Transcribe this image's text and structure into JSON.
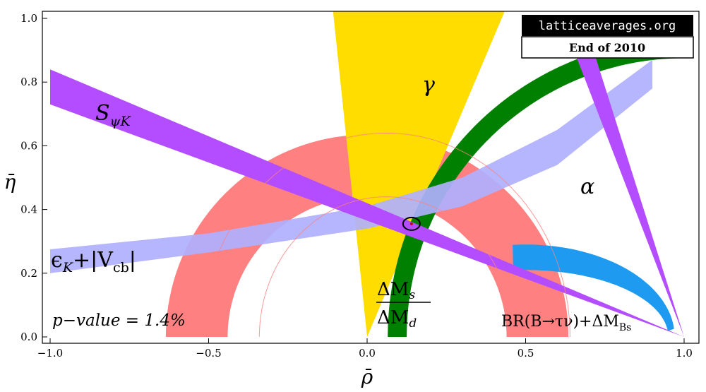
{
  "chart_data": {
    "type": "area",
    "xlabel": "ρ̄",
    "ylabel": "η̄",
    "xlim": [
      -1.0,
      1.0
    ],
    "ylim": [
      0.0,
      1.0
    ],
    "x_ticks": [
      "−1.0",
      "−0.5",
      "0.0",
      "0.5",
      "1.0"
    ],
    "y_ticks": [
      "0.0",
      "0.2",
      "0.4",
      "0.6",
      "0.8",
      "1.0"
    ],
    "x_tick_values": [
      -1.0,
      -0.5,
      0.0,
      0.5,
      1.0
    ],
    "y_tick_values": [
      0.0,
      0.2,
      0.4,
      0.6,
      0.8,
      1.0
    ],
    "badge": {
      "site": "latticeaverages.org",
      "date": "End of 2010"
    },
    "annotation": {
      "text": "p−value =  1.4%"
    },
    "best_fit": {
      "rho": 0.14,
      "eta": 0.355
    },
    "regions": [
      {
        "key": "gamma",
        "name": "γ",
        "color": "#FFDD00",
        "apex": [
          0.0,
          0.0
        ],
        "angle_min_deg": 67,
        "angle_max_deg": 96
      },
      {
        "key": "dms",
        "name_top": "ΔM",
        "sub_top": "s",
        "name_bottom": "ΔM",
        "sub_bottom": "d",
        "color": "#008000",
        "center": [
          1.0,
          0.0
        ],
        "r_inner": 0.875,
        "r_outer": 0.935
      },
      {
        "key": "vub",
        "name": "BR(B→τν)+ΔM",
        "sub": "Bs",
        "color": "#FF8080",
        "center": [
          0.0,
          0.0
        ],
        "r_inner": 0.44,
        "r_outer": 0.635
      },
      {
        "key": "alpha",
        "name": "α",
        "color": "#1E9BF0",
        "center": [
          0.5,
          0.0
        ],
        "r_inner_h": 0.45,
        "r_outer_h": 0.45,
        "r_inner_v": 0.21,
        "r_outer_v": 0.29
      },
      {
        "key": "epsk",
        "name": "ϵ",
        "sub": "K",
        "suffix": "+|V",
        "sub2": "cb",
        "suffix2": "|",
        "color": "#B0B0FF",
        "upper": [
          [
            -1.0,
            0.275
          ],
          [
            -0.5,
            0.325
          ],
          [
            0.0,
            0.41
          ],
          [
            0.3,
            0.5
          ],
          [
            0.6,
            0.65
          ],
          [
            0.9,
            0.87
          ]
        ],
        "lower": [
          [
            -1.0,
            0.2
          ],
          [
            -0.5,
            0.265
          ],
          [
            0.0,
            0.34
          ],
          [
            0.3,
            0.41
          ],
          [
            0.6,
            0.54
          ],
          [
            0.9,
            0.78
          ]
        ]
      },
      {
        "key": "spsik",
        "name": "S",
        "sub": "ψK",
        "color": "#B44DFF",
        "pivot": [
          1.0,
          0.0
        ],
        "upper_end": [
          -1.0,
          0.84
        ],
        "lower_end": [
          -1.0,
          0.73
        ]
      },
      {
        "key": "alpha_steep",
        "color": "#B44DFF",
        "pivot": [
          1.0,
          0.0
        ],
        "top_a": [
          0.66,
          0.88
        ],
        "top_b": [
          0.72,
          0.88
        ]
      }
    ]
  }
}
